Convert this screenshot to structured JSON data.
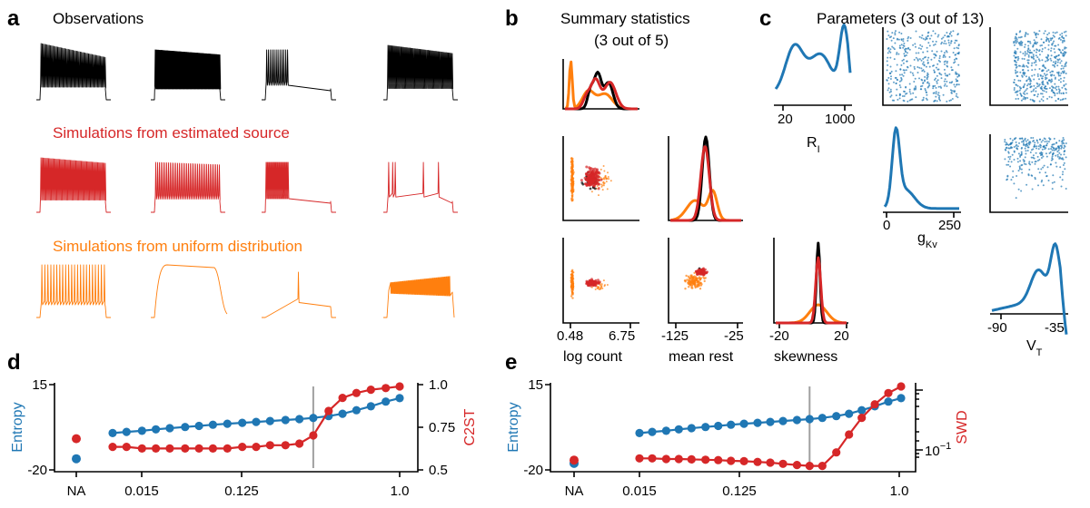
{
  "colors": {
    "black": "#000000",
    "red": "#d62728",
    "orange": "#ff7f0e",
    "blue": "#1f77b4",
    "grey": "#a0a0a0"
  },
  "panels": {
    "a": "a",
    "b": "b",
    "c": "c",
    "d": "d",
    "e": "e"
  },
  "panel_a": {
    "observations_title": "Observations",
    "estimated_title": "Simulations from estimated source",
    "uniform_title": "Simulations from uniform distribution"
  },
  "panel_b": {
    "title_line1": "Summary statistics",
    "title_line2": "(3 out of 5)",
    "xlabels": [
      "log count",
      "mean rest",
      "skewness"
    ],
    "ticks": {
      "log_count": [
        "0.48",
        "6.75"
      ],
      "mean_rest": [
        "-125",
        "-25"
      ],
      "skewness": [
        "-20",
        "20"
      ]
    }
  },
  "panel_c": {
    "title": "Parameters (3 out of 13)",
    "labels": {
      "r1_main": "R",
      "r1_sub": "I",
      "g_main": "g",
      "g_sub": "Kv",
      "v_main": "V",
      "v_sub": "T"
    },
    "ticks": {
      "r1": [
        "20",
        "1000"
      ],
      "g": [
        "0",
        "250"
      ],
      "v": [
        "-90",
        "-35"
      ]
    }
  },
  "chart_data": [
    {
      "panel": "d",
      "type": "line",
      "x_ticks": [
        "NA",
        "0.015",
        "0.125",
        "1.0"
      ],
      "left_axis": {
        "label": "Entropy",
        "ticks": [
          "15",
          "-20"
        ],
        "range": [
          -20,
          15
        ]
      },
      "right_axis": {
        "label": "C2ST",
        "ticks": [
          "1.0",
          "0.75",
          "0.5"
        ],
        "range": [
          0.5,
          1.0
        ]
      },
      "vline_x": 0.25,
      "x": [
        0.01,
        0.0125,
        0.016,
        0.02,
        0.025,
        0.032,
        0.04,
        0.05,
        0.063,
        0.08,
        0.1,
        0.125,
        0.16,
        0.2,
        0.25,
        0.32,
        0.4,
        0.5,
        0.63,
        0.8,
        1.0
      ],
      "series": [
        {
          "name": "Entropy",
          "color": "blue",
          "axis": "left",
          "na_value": -16,
          "values": [
            -5,
            -4.5,
            -4,
            -3.4,
            -2.9,
            -2.4,
            -1.9,
            -1.4,
            -1,
            -0.6,
            -0.2,
            0.2,
            0.6,
            1.0,
            1.5,
            2.3,
            3.3,
            4.8,
            6.5,
            8.5,
            10
          ]
        },
        {
          "name": "C2ST",
          "color": "red",
          "axis": "right",
          "na_value": 0.68,
          "values": [
            0.63,
            0.63,
            0.62,
            0.62,
            0.62,
            0.62,
            0.62,
            0.62,
            0.62,
            0.63,
            0.63,
            0.64,
            0.64,
            0.65,
            0.7,
            0.85,
            0.93,
            0.96,
            0.98,
            0.99,
            1.0
          ]
        }
      ]
    },
    {
      "panel": "e",
      "type": "line",
      "x_ticks": [
        "NA",
        "0.015",
        "0.125",
        "1.0"
      ],
      "left_axis": {
        "label": "Entropy",
        "ticks": [
          "15",
          "-20"
        ],
        "range": [
          -20,
          15
        ]
      },
      "right_axis": {
        "label": "SWD",
        "ticks": [
          "10",
          "−1"
        ],
        "scale": "log"
      },
      "vline_x": 0.2,
      "x": [
        0.01,
        0.0125,
        0.016,
        0.02,
        0.025,
        0.032,
        0.04,
        0.05,
        0.063,
        0.08,
        0.1,
        0.125,
        0.16,
        0.2,
        0.25,
        0.32,
        0.4,
        0.5,
        0.63,
        0.8,
        1.0
      ],
      "series": [
        {
          "name": "Entropy",
          "color": "blue",
          "axis": "left",
          "na_value": -18,
          "values": [
            -5,
            -4.5,
            -4,
            -3.4,
            -2.9,
            -2.4,
            -1.9,
            -1.4,
            -1,
            -0.6,
            -0.2,
            0.2,
            0.6,
            1.0,
            1.5,
            2.3,
            3.3,
            4.8,
            6.5,
            8.5,
            10
          ]
        },
        {
          "name": "SWD",
          "color": "red",
          "axis": "right",
          "na_value": 0.085,
          "values": [
            0.09,
            0.09,
            0.088,
            0.088,
            0.087,
            0.086,
            0.085,
            0.083,
            0.082,
            0.08,
            0.078,
            0.075,
            0.072,
            0.07,
            0.07,
            0.11,
            0.2,
            0.35,
            0.55,
            0.8,
            1.0
          ]
        }
      ]
    }
  ]
}
